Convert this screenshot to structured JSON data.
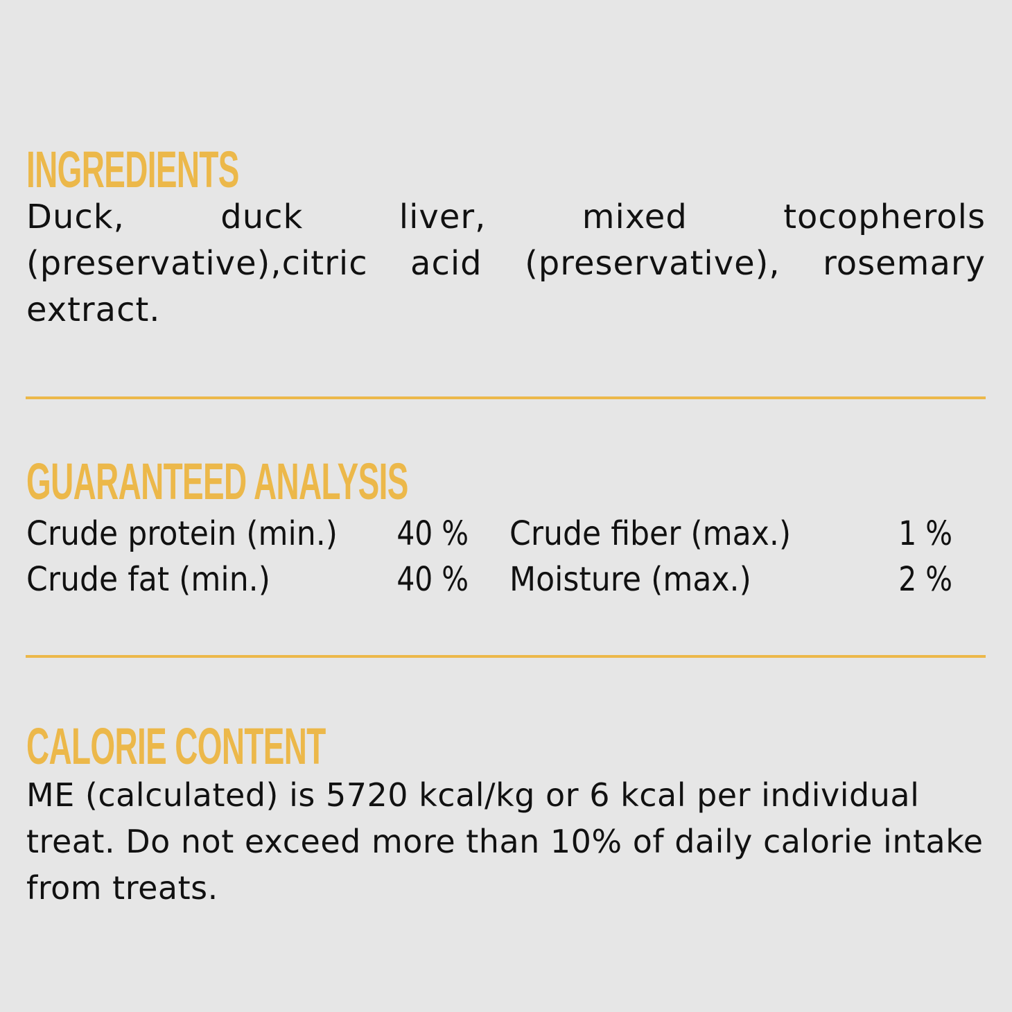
{
  "colors": {
    "accent": "#ecb84a",
    "background": "#e6e6e6",
    "text": "#111111"
  },
  "ingredients": {
    "title": "INGREDIENTS",
    "text": "Duck, duck liver, mixed tocopherols (preservative),citric acid (preservative), rosemary extract."
  },
  "analysis": {
    "title": "GUARANTEED ANALYSIS",
    "items": [
      {
        "label": "Crude protein (min.)",
        "value": "40 %"
      },
      {
        "label": "Crude fat (min.)",
        "value": "40 %"
      },
      {
        "label": "Crude fiber (max.)",
        "value": "1 %"
      },
      {
        "label": "Moisture (max.)",
        "value": "2 %"
      }
    ]
  },
  "calorie": {
    "title": "CALORIE CONTENT",
    "text": "ME (calculated) is 5720 kcal/kg or 6 kcal per individual treat. Do not exceed more than 10% of daily calorie intake from treats."
  }
}
